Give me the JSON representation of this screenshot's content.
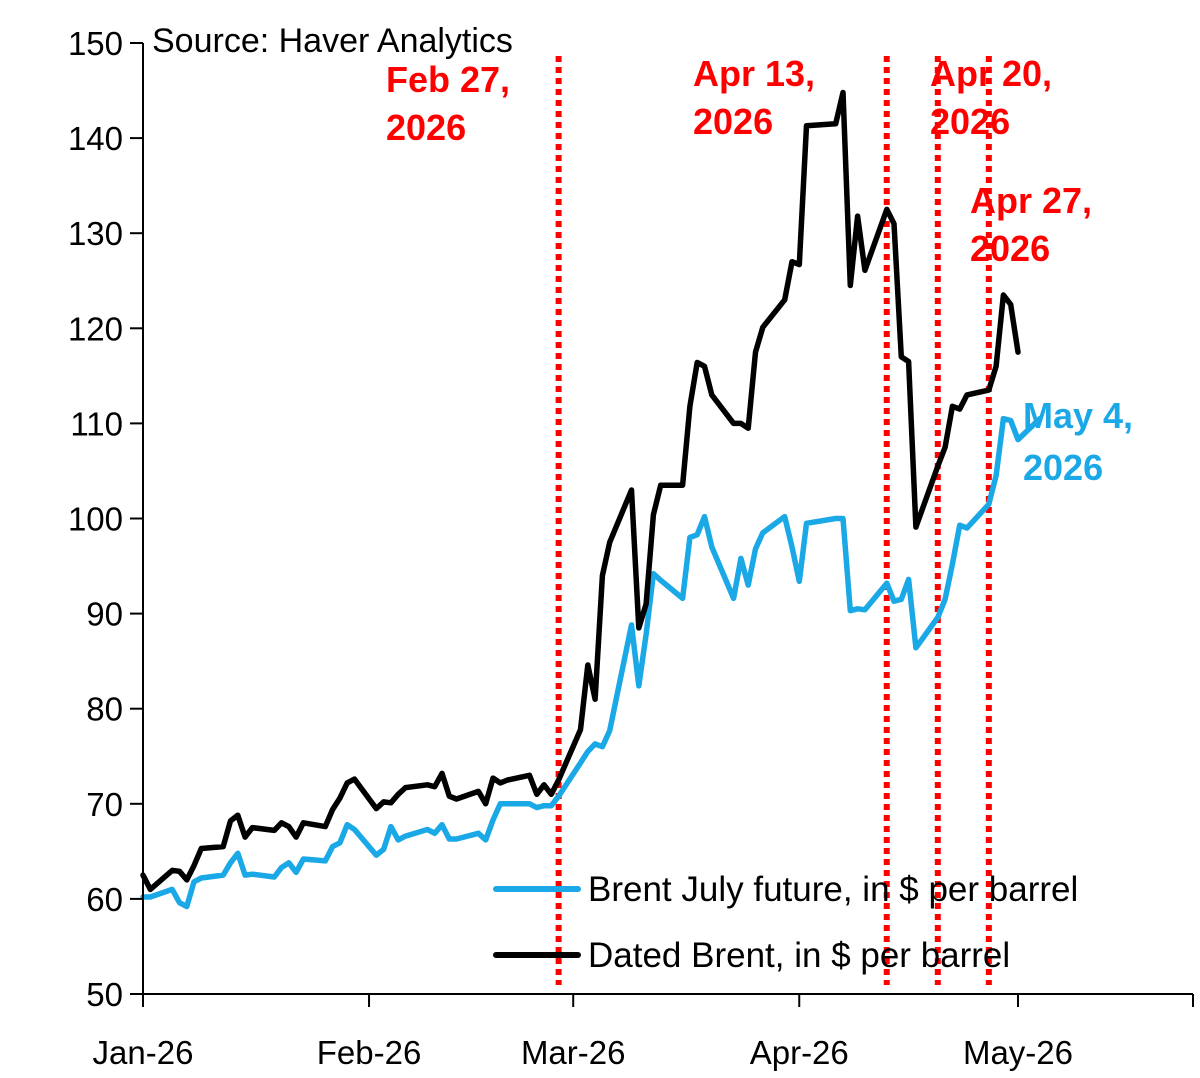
{
  "chart_data": {
    "type": "line",
    "source": "Source: Haver Analytics",
    "x_domain": [
      "2026-01-01",
      "2026-05-25"
    ],
    "x_ticks": [
      {
        "date": "2026-01-01",
        "label": "Jan-26"
      },
      {
        "date": "2026-02-01",
        "label": "Feb-26"
      },
      {
        "date": "2026-03-01",
        "label": "Mar-26"
      },
      {
        "date": "2026-04-01",
        "label": "Apr-26"
      },
      {
        "date": "2026-05-01",
        "label": "May-26"
      }
    ],
    "ylim": [
      50,
      150
    ],
    "y_ticks": [
      "50",
      "60",
      "70",
      "80",
      "90",
      "100",
      "110",
      "120",
      "130",
      "140",
      "150"
    ],
    "grid": false,
    "legend_position": "bottom-right",
    "series": [
      {
        "name": "Brent July future, in $ per barrel",
        "color": "#1aa8e6",
        "points": [
          [
            "2026-01-01",
            60.2
          ],
          [
            "2026-01-02",
            60.2
          ],
          [
            "2026-01-05",
            61.0
          ],
          [
            "2026-01-06",
            59.6
          ],
          [
            "2026-01-07",
            59.2
          ],
          [
            "2026-01-08",
            61.8
          ],
          [
            "2026-01-09",
            62.2
          ],
          [
            "2026-01-12",
            62.5
          ],
          [
            "2026-01-13",
            63.8
          ],
          [
            "2026-01-14",
            64.8
          ],
          [
            "2026-01-15",
            62.5
          ],
          [
            "2026-01-16",
            62.6
          ],
          [
            "2026-01-19",
            62.3
          ],
          [
            "2026-01-20",
            63.3
          ],
          [
            "2026-01-21",
            63.8
          ],
          [
            "2026-01-22",
            62.8
          ],
          [
            "2026-01-23",
            64.2
          ],
          [
            "2026-01-26",
            64.0
          ],
          [
            "2026-01-27",
            65.5
          ],
          [
            "2026-01-28",
            65.9
          ],
          [
            "2026-01-29",
            67.8
          ],
          [
            "2026-01-30",
            67.3
          ],
          [
            "2026-02-02",
            64.6
          ],
          [
            "2026-02-03",
            65.2
          ],
          [
            "2026-02-04",
            67.6
          ],
          [
            "2026-02-05",
            66.2
          ],
          [
            "2026-02-06",
            66.6
          ],
          [
            "2026-02-09",
            67.3
          ],
          [
            "2026-02-10",
            66.9
          ],
          [
            "2026-02-11",
            67.8
          ],
          [
            "2026-02-12",
            66.3
          ],
          [
            "2026-02-13",
            66.3
          ],
          [
            "2026-02-16",
            66.9
          ],
          [
            "2026-02-17",
            66.2
          ],
          [
            "2026-02-18",
            68.3
          ],
          [
            "2026-02-19",
            70.0
          ],
          [
            "2026-02-20",
            70.0
          ],
          [
            "2026-02-23",
            70.0
          ],
          [
            "2026-02-24",
            69.6
          ],
          [
            "2026-02-25",
            69.8
          ],
          [
            "2026-02-26",
            69.8
          ],
          [
            "2026-02-27",
            70.8
          ],
          [
            "2026-03-02",
            74.3
          ],
          [
            "2026-03-03",
            75.5
          ],
          [
            "2026-03-04",
            76.3
          ],
          [
            "2026-03-05",
            76.0
          ],
          [
            "2026-03-06",
            77.7
          ],
          [
            "2026-03-09",
            88.8
          ],
          [
            "2026-03-10",
            82.4
          ],
          [
            "2026-03-11",
            87.8
          ],
          [
            "2026-03-12",
            94.2
          ],
          [
            "2026-03-13",
            93.5
          ],
          [
            "2026-03-16",
            91.6
          ],
          [
            "2026-03-17",
            98.0
          ],
          [
            "2026-03-18",
            98.3
          ],
          [
            "2026-03-19",
            100.2
          ],
          [
            "2026-03-20",
            97.0
          ],
          [
            "2026-03-23",
            91.6
          ],
          [
            "2026-03-24",
            95.8
          ],
          [
            "2026-03-25",
            93.0
          ],
          [
            "2026-03-26",
            96.8
          ],
          [
            "2026-03-27",
            98.5
          ],
          [
            "2026-03-30",
            100.2
          ],
          [
            "2026-03-31",
            97.0
          ],
          [
            "2026-04-01",
            93.4
          ],
          [
            "2026-04-02",
            99.5
          ],
          [
            "2026-04-06",
            100.0
          ],
          [
            "2026-04-07",
            100.0
          ],
          [
            "2026-04-08",
            90.3
          ],
          [
            "2026-04-09",
            90.5
          ],
          [
            "2026-04-10",
            90.4
          ],
          [
            "2026-04-13",
            93.2
          ],
          [
            "2026-04-14",
            91.3
          ],
          [
            "2026-04-15",
            91.5
          ],
          [
            "2026-04-16",
            93.6
          ],
          [
            "2026-04-17",
            86.4
          ],
          [
            "2026-04-20",
            89.6
          ],
          [
            "2026-04-21",
            91.5
          ],
          [
            "2026-04-22",
            95.2
          ],
          [
            "2026-04-23",
            99.3
          ],
          [
            "2026-04-24",
            99.0
          ],
          [
            "2026-04-27",
            101.5
          ],
          [
            "2026-04-28",
            104.5
          ],
          [
            "2026-04-29",
            110.5
          ],
          [
            "2026-04-30",
            110.3
          ],
          [
            "2026-05-01",
            108.3
          ],
          [
            "2026-05-04",
            110.5
          ]
        ]
      },
      {
        "name": "Dated Brent, in $ per barrel",
        "color": "#000000",
        "points": [
          [
            "2026-01-01",
            62.5
          ],
          [
            "2026-01-02",
            61.0
          ],
          [
            "2026-01-05",
            63.0
          ],
          [
            "2026-01-06",
            62.9
          ],
          [
            "2026-01-07",
            62.0
          ],
          [
            "2026-01-08",
            63.5
          ],
          [
            "2026-01-09",
            65.3
          ],
          [
            "2026-01-12",
            65.5
          ],
          [
            "2026-01-13",
            68.2
          ],
          [
            "2026-01-14",
            68.8
          ],
          [
            "2026-01-15",
            66.5
          ],
          [
            "2026-01-16",
            67.5
          ],
          [
            "2026-01-19",
            67.2
          ],
          [
            "2026-01-20",
            68.0
          ],
          [
            "2026-01-21",
            67.6
          ],
          [
            "2026-01-22",
            66.5
          ],
          [
            "2026-01-23",
            68.0
          ],
          [
            "2026-01-26",
            67.6
          ],
          [
            "2026-01-27",
            69.4
          ],
          [
            "2026-01-28",
            70.6
          ],
          [
            "2026-01-29",
            72.2
          ],
          [
            "2026-01-30",
            72.6
          ],
          [
            "2026-02-02",
            69.5
          ],
          [
            "2026-02-03",
            70.2
          ],
          [
            "2026-02-04",
            70.1
          ],
          [
            "2026-02-05",
            71.0
          ],
          [
            "2026-02-06",
            71.7
          ],
          [
            "2026-02-09",
            72.0
          ],
          [
            "2026-02-10",
            71.8
          ],
          [
            "2026-02-11",
            73.2
          ],
          [
            "2026-02-12",
            70.8
          ],
          [
            "2026-02-13",
            70.5
          ],
          [
            "2026-02-16",
            71.3
          ],
          [
            "2026-02-17",
            70.0
          ],
          [
            "2026-02-18",
            72.7
          ],
          [
            "2026-02-19",
            72.2
          ],
          [
            "2026-02-20",
            72.5
          ],
          [
            "2026-02-23",
            73.0
          ],
          [
            "2026-02-24",
            71.0
          ],
          [
            "2026-02-25",
            72.0
          ],
          [
            "2026-02-26",
            71.0
          ],
          [
            "2026-02-27",
            72.5
          ],
          [
            "2026-03-02",
            77.8
          ],
          [
            "2026-03-03",
            84.6
          ],
          [
            "2026-03-04",
            81.0
          ],
          [
            "2026-03-05",
            94.0
          ],
          [
            "2026-03-06",
            97.5
          ],
          [
            "2026-03-09",
            103.0
          ],
          [
            "2026-03-10",
            88.5
          ],
          [
            "2026-03-11",
            91.0
          ],
          [
            "2026-03-12",
            100.4
          ],
          [
            "2026-03-13",
            103.5
          ],
          [
            "2026-03-16",
            103.5
          ],
          [
            "2026-03-17",
            111.8
          ],
          [
            "2026-03-18",
            116.4
          ],
          [
            "2026-03-19",
            116.0
          ],
          [
            "2026-03-20",
            113.0
          ],
          [
            "2026-03-23",
            110.0
          ],
          [
            "2026-03-24",
            110.0
          ],
          [
            "2026-03-25",
            109.5
          ],
          [
            "2026-03-26",
            117.5
          ],
          [
            "2026-03-27",
            120.1
          ],
          [
            "2026-03-30",
            123.0
          ],
          [
            "2026-03-31",
            127.0
          ],
          [
            "2026-04-01",
            126.7
          ],
          [
            "2026-04-02",
            141.3
          ],
          [
            "2026-04-06",
            141.5
          ],
          [
            "2026-04-07",
            144.8
          ],
          [
            "2026-04-08",
            124.5
          ],
          [
            "2026-04-09",
            131.8
          ],
          [
            "2026-04-10",
            126.1
          ],
          [
            "2026-04-13",
            132.5
          ],
          [
            "2026-04-14",
            131.0
          ],
          [
            "2026-04-15",
            117.0
          ],
          [
            "2026-04-16",
            116.5
          ],
          [
            "2026-04-17",
            99.1
          ],
          [
            "2026-04-20",
            105.5
          ],
          [
            "2026-04-21",
            107.5
          ],
          [
            "2026-04-22",
            111.8
          ],
          [
            "2026-04-23",
            111.5
          ],
          [
            "2026-04-24",
            113.0
          ],
          [
            "2026-04-27",
            113.5
          ],
          [
            "2026-04-28",
            116.0
          ],
          [
            "2026-04-29",
            123.5
          ],
          [
            "2026-04-30",
            122.5
          ],
          [
            "2026-05-01",
            117.5
          ]
        ]
      }
    ],
    "vertical_markers": [
      {
        "date": "2026-02-27",
        "color": "#ff0000",
        "label_lines": [
          "Feb 27,",
          "2026"
        ]
      },
      {
        "date": "2026-04-13",
        "color": "#ff0000",
        "label_lines": [
          "Apr 13,",
          "2026"
        ]
      },
      {
        "date": "2026-04-20",
        "color": "#ff0000",
        "label_lines": [
          "Apr 20,",
          "2026"
        ]
      },
      {
        "date": "2026-04-27",
        "color": "#ff0000",
        "label_lines": [
          "Apr 27,",
          "2026"
        ]
      }
    ],
    "end_annotation": {
      "label_lines": [
        "May 4,",
        "2026"
      ],
      "color": "#1aa8e6"
    }
  }
}
